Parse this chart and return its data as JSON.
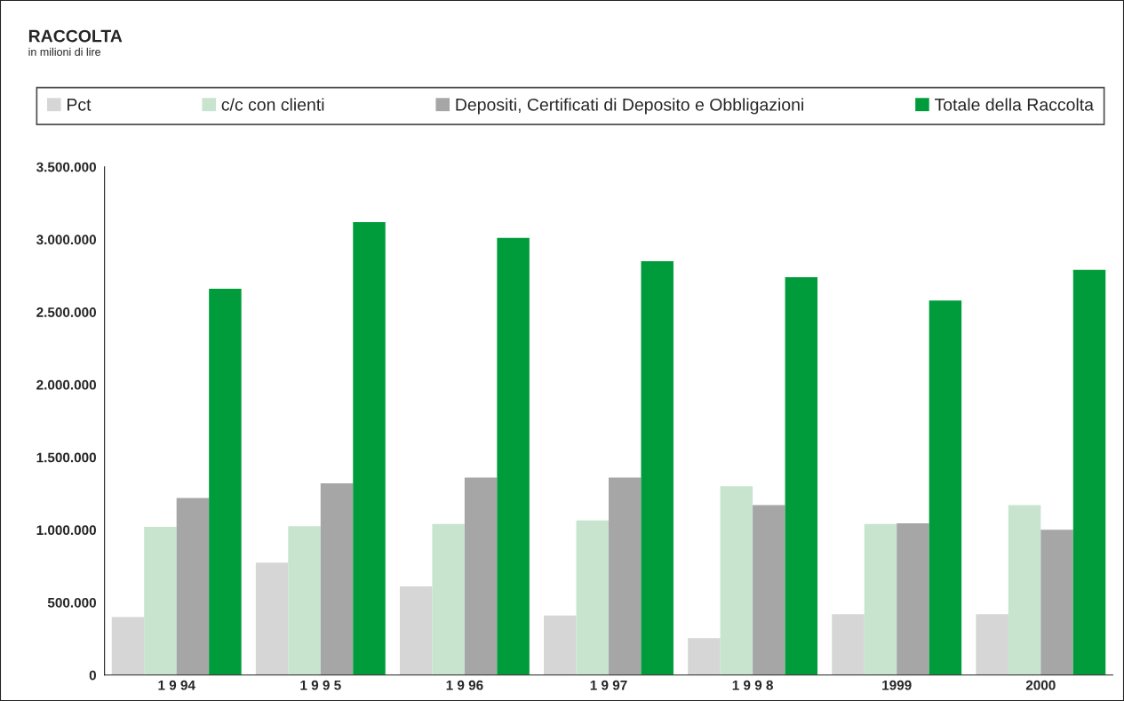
{
  "chart_data": {
    "type": "bar",
    "title": "RACCOLTA",
    "subtitle": "in milioni di lire",
    "categories": [
      "1 9 94",
      "1 9 9 5",
      "1 9 96",
      "1 9 97",
      "1 9 9 8",
      "1999",
      "2000"
    ],
    "series": [
      {
        "name": "Pct",
        "color": "#d6d6d6",
        "values": [
          400000,
          775000,
          610000,
          410000,
          255000,
          420000,
          420000
        ]
      },
      {
        "name": "c/c con clienti",
        "color": "#c8e4ce",
        "values": [
          1020000,
          1025000,
          1040000,
          1065000,
          1300000,
          1040000,
          1170000
        ]
      },
      {
        "name": "Depositi, Certificati di Deposito e Obbligazioni",
        "color": "#a6a6a6",
        "values": [
          1220000,
          1320000,
          1360000,
          1360000,
          1170000,
          1045000,
          1000000
        ]
      },
      {
        "name": "Totale della Raccolta",
        "color": "#009c3b",
        "values": [
          2660000,
          3120000,
          3010000,
          2850000,
          2740000,
          2580000,
          2790000
        ]
      }
    ],
    "ylim": [
      0,
      3500000
    ],
    "yticks": [
      0,
      {
        "value": 500000,
        "label": "500.000"
      },
      {
        "value": 1000000,
        "label": "1.000.000"
      },
      {
        "value": 1500000,
        "label": "1.500.000"
      },
      {
        "value": 2000000,
        "label": "2.000.000"
      },
      {
        "value": 2500000,
        "label": "2.500.000"
      },
      {
        "value": 3000000,
        "label": "3.000.000"
      },
      {
        "value": 3500000,
        "label": "3.500.000"
      }
    ],
    "legend": "top",
    "grid": false
  }
}
